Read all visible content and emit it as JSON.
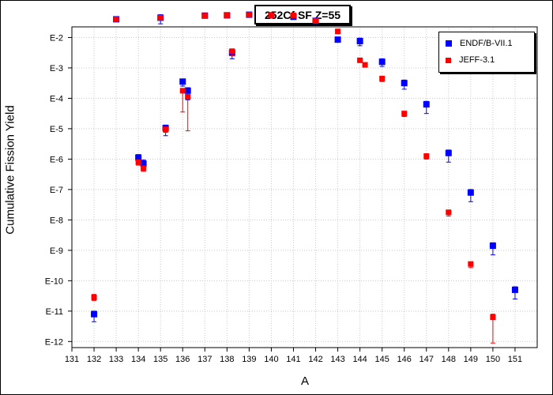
{
  "chart_data": {
    "type": "scatter",
    "title": "252Cf SF Z=55",
    "xlabel": "A",
    "ylabel": "Cumulative Fission Yield",
    "xlim": [
      131,
      152
    ],
    "ylim_log10": [
      -12.2,
      -1.65
    ],
    "y_scale": "log",
    "x_ticks": [
      131,
      132,
      133,
      134,
      135,
      136,
      137,
      138,
      139,
      140,
      141,
      142,
      143,
      144,
      145,
      146,
      147,
      148,
      149,
      150,
      151
    ],
    "y_ticks": [
      {
        "exp": -2,
        "label": "E-2"
      },
      {
        "exp": -3,
        "label": "E-3"
      },
      {
        "exp": -4,
        "label": "E-4"
      },
      {
        "exp": -5,
        "label": "E-5"
      },
      {
        "exp": -6,
        "label": "E-6"
      },
      {
        "exp": -7,
        "label": "E-7"
      },
      {
        "exp": -8,
        "label": "E-8"
      },
      {
        "exp": -9,
        "label": "E-9"
      },
      {
        "exp": -10,
        "label": "E-10"
      },
      {
        "exp": -11,
        "label": "E-11"
      },
      {
        "exp": -12,
        "label": "E-12"
      }
    ],
    "grid": true,
    "legend_position": "top-right",
    "series": [
      {
        "name": "ENDF/B-VII.1",
        "color": "#0000ff",
        "marker": "square",
        "points": [
          {
            "x": 132,
            "log10y": -11.1,
            "err_lo": 0.25,
            "err_hi": 0.1
          },
          {
            "x": 133,
            "log10y": -1.4,
            "err_lo": 0.02,
            "err_hi": 0.02
          },
          {
            "x": 134,
            "log10y": -5.95,
            "err_lo": 0.15,
            "err_hi": 0.1
          },
          {
            "x": 134.23,
            "log10y": -6.15,
            "err_lo": 0.2,
            "err_hi": 0.12
          },
          {
            "x": 135,
            "log10y": -1.35,
            "err_lo": 0.2,
            "err_hi": 0.1
          },
          {
            "x": 135.23,
            "log10y": -4.98,
            "err_lo": 0.25,
            "err_hi": 0.1
          },
          {
            "x": 136,
            "log10y": -3.45,
            "err_lo": 0.15,
            "err_hi": 0.05
          },
          {
            "x": 136.23,
            "log10y": -3.75,
            "err_lo": 0.3,
            "err_hi": 0.1
          },
          {
            "x": 137,
            "log10y": -1.28,
            "err_lo": 0.02,
            "err_hi": 0.02
          },
          {
            "x": 138,
            "log10y": -1.27,
            "err_lo": 0.02,
            "err_hi": 0.02
          },
          {
            "x": 138.23,
            "log10y": -2.5,
            "err_lo": 0.2,
            "err_hi": 0.1
          },
          {
            "x": 139,
            "log10y": -1.25,
            "err_lo": 0.02,
            "err_hi": 0.02
          },
          {
            "x": 140,
            "log10y": -1.27,
            "err_lo": 0.02,
            "err_hi": 0.02
          },
          {
            "x": 141,
            "log10y": -1.32,
            "err_lo": 0.03,
            "err_hi": 0.03
          },
          {
            "x": 142,
            "log10y": -1.45,
            "err_lo": 0.04,
            "err_hi": 0.04
          },
          {
            "x": 143,
            "log10y": -2.07,
            "err_lo": 0.07,
            "err_hi": 0.07
          },
          {
            "x": 144,
            "log10y": -2.12,
            "err_lo": 0.15,
            "err_hi": 0.1
          },
          {
            "x": 145,
            "log10y": -2.8,
            "err_lo": 0.15,
            "err_hi": 0.1
          },
          {
            "x": 146,
            "log10y": -3.5,
            "err_lo": 0.2,
            "err_hi": 0.1
          },
          {
            "x": 147,
            "log10y": -4.2,
            "err_lo": 0.3,
            "err_hi": 0.1
          },
          {
            "x": 148,
            "log10y": -5.8,
            "err_lo": 0.3,
            "err_hi": 0.1
          },
          {
            "x": 149,
            "log10y": -7.1,
            "err_lo": 0.3,
            "err_hi": 0.1
          },
          {
            "x": 150,
            "log10y": -8.85,
            "err_lo": 0.3,
            "err_hi": 0.1
          },
          {
            "x": 151,
            "log10y": -10.3,
            "err_lo": 0.3,
            "err_hi": 0.1
          }
        ]
      },
      {
        "name": "JEFF-3.1",
        "color": "#ff0000",
        "marker": "square",
        "points": [
          {
            "x": 132,
            "log10y": -10.55,
            "err_lo": 0.1,
            "err_hi": 0.1
          },
          {
            "x": 133,
            "log10y": -1.4,
            "err_lo": 0.02,
            "err_hi": 0.02
          },
          {
            "x": 134,
            "log10y": -6.1,
            "err_lo": 0.1,
            "err_hi": 0.05
          },
          {
            "x": 134.23,
            "log10y": -6.3,
            "err_lo": 0.1,
            "err_hi": 0.05
          },
          {
            "x": 135,
            "log10y": -1.35,
            "err_lo": 0.02,
            "err_hi": 0.02
          },
          {
            "x": 135.23,
            "log10y": -5.02,
            "err_lo": 0.1,
            "err_hi": 0.05
          },
          {
            "x": 136,
            "log10y": -3.75,
            "err_lo": 0.7,
            "err_hi": 0.05
          },
          {
            "x": 136.23,
            "log10y": -3.95,
            "err_lo": 1.12,
            "err_hi": 0.05
          },
          {
            "x": 137,
            "log10y": -1.28,
            "err_lo": 0.02,
            "err_hi": 0.02
          },
          {
            "x": 138,
            "log10y": -1.27,
            "err_lo": 0.02,
            "err_hi": 0.02
          },
          {
            "x": 138.23,
            "log10y": -2.45,
            "err_lo": 0.15,
            "err_hi": 0.05
          },
          {
            "x": 139,
            "log10y": -1.25,
            "err_lo": 0.02,
            "err_hi": 0.02
          },
          {
            "x": 140,
            "log10y": -1.27,
            "err_lo": 0.02,
            "err_hi": 0.02
          },
          {
            "x": 141,
            "log10y": -1.27,
            "err_lo": 0.03,
            "err_hi": 0.03
          },
          {
            "x": 142,
            "log10y": -1.45,
            "err_lo": 0.04,
            "err_hi": 0.04
          },
          {
            "x": 143,
            "log10y": -1.8,
            "err_lo": 0.03,
            "err_hi": 0.03
          },
          {
            "x": 144,
            "log10y": -2.75,
            "err_lo": 0.07,
            "err_hi": 0.05
          },
          {
            "x": 144.23,
            "log10y": -2.9,
            "err_lo": 0.07,
            "err_hi": 0.05
          },
          {
            "x": 145,
            "log10y": -3.35,
            "err_lo": 0.1,
            "err_hi": 0.05
          },
          {
            "x": 146,
            "log10y": -4.5,
            "err_lo": 0.1,
            "err_hi": 0.05
          },
          {
            "x": 147,
            "log10y": -5.9,
            "err_lo": 0.1,
            "err_hi": 0.05
          },
          {
            "x": 148,
            "log10y": -7.75,
            "err_lo": 0.12,
            "err_hi": 0.05
          },
          {
            "x": 149,
            "log10y": -9.45,
            "err_lo": 0.12,
            "err_hi": 0.05
          },
          {
            "x": 150,
            "log10y": -11.2,
            "err_lo": 0.85,
            "err_hi": 0.1
          }
        ]
      }
    ]
  }
}
